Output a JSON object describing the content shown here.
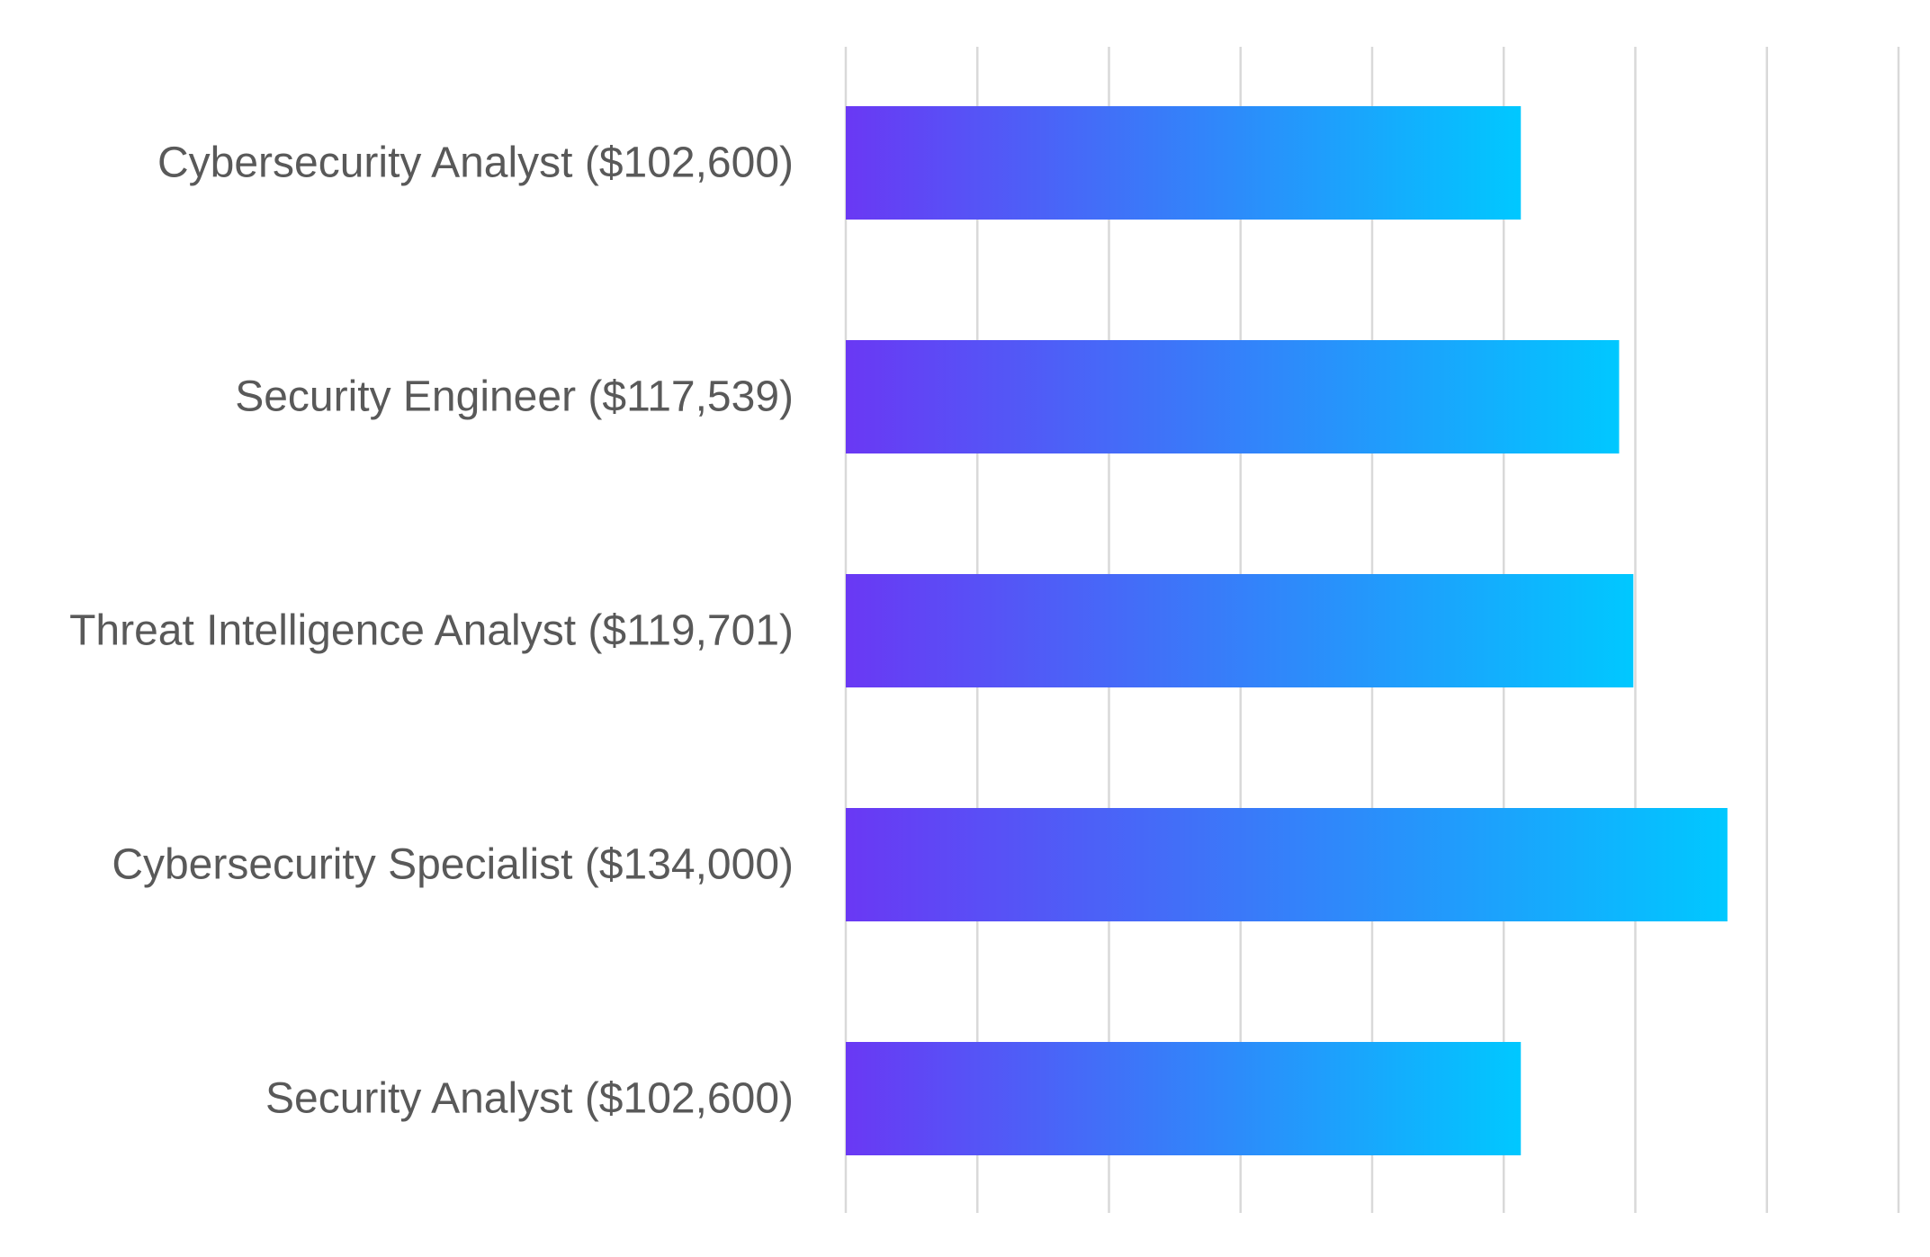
{
  "chart_data": {
    "type": "bar",
    "orientation": "horizontal",
    "categories": [
      "Cybersecurity Analyst ($102,600)",
      "Security Engineer ($117,539)",
      "Threat Intelligence Analyst ($119,701)",
      "Cybersecurity Specialist ($134,000)",
      "Security Analyst ($102,600)"
    ],
    "values": [
      102600,
      117539,
      119701,
      134000,
      102600
    ],
    "xlim": [
      0,
      160000
    ],
    "grid": true,
    "gridline_count": 9,
    "title": "",
    "xlabel": "",
    "ylabel": "",
    "legend": "none",
    "colors": {
      "bar_gradient_start": "#6a38f4",
      "bar_gradient_end": "#00c8ff",
      "gridline": "#d9d9d9",
      "label_text": "#595959"
    }
  }
}
